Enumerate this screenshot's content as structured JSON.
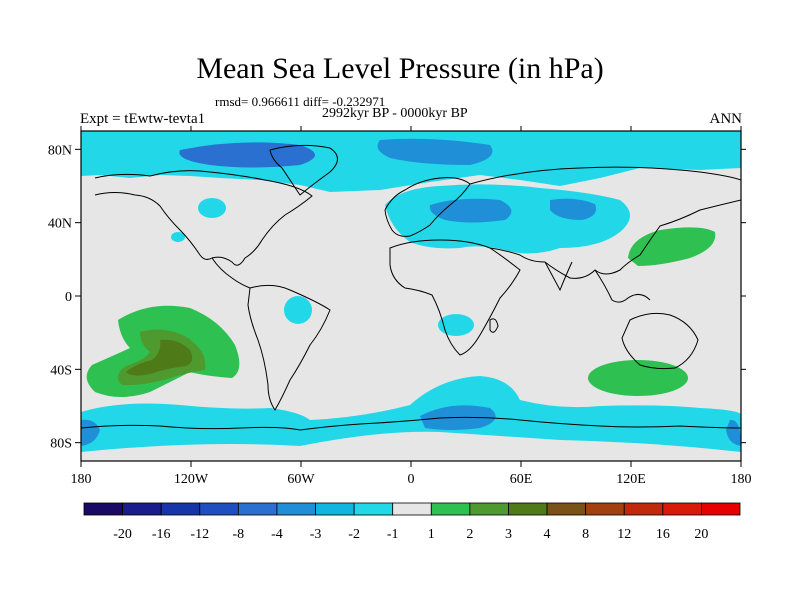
{
  "header": {
    "title": "Mean Sea Level Pressure (in hPa)",
    "stats": "rmsd= 0.966611 diff= -0.232971",
    "period": "2992kyr BP - 0000kyr BP",
    "experiment": "Expt = tEwtw-tevta1",
    "season": "ANN"
  },
  "chart_data": {
    "type": "heatmap",
    "title": "Mean Sea Level Pressure (in hPa)",
    "units": "hPa",
    "x_axis": {
      "range": [
        -180,
        180
      ],
      "ticks": [
        -180,
        -120,
        -60,
        0,
        60,
        120,
        180
      ],
      "tick_labels": [
        "180",
        "120W",
        "60W",
        "0",
        "60E",
        "120E",
        "180"
      ]
    },
    "y_axis": {
      "range": [
        -90,
        90
      ],
      "ticks": [
        80,
        40,
        0,
        -40,
        -80
      ],
      "tick_labels": [
        "80N",
        "40N",
        "0",
        "40S",
        "80S"
      ]
    },
    "colorbar": {
      "levels": [
        "-20",
        "-16",
        "-12",
        "-8",
        "-4",
        "-3",
        "-2",
        "-1",
        "1",
        "2",
        "3",
        "4",
        "8",
        "12",
        "16",
        "20"
      ],
      "colors": [
        "#1a0a66",
        "#1c1d8c",
        "#1535a8",
        "#1d4fc0",
        "#2a70d0",
        "#1f90d8",
        "#10b6e0",
        "#22d8e8",
        "#e6e6e6",
        "#2ec050",
        "#4f9a2e",
        "#4e7a18",
        "#7a5218",
        "#a34010",
        "#c02a0a",
        "#d81a08",
        "#e60000"
      ]
    },
    "regions": [
      {
        "name": "arctic-negative",
        "value_range": [
          -4,
          -1
        ]
      },
      {
        "name": "north-atlantic-eurasia-negative",
        "value_range": [
          -4,
          -1
        ]
      },
      {
        "name": "south-pacific-positive",
        "value_range": [
          1,
          4
        ]
      },
      {
        "name": "south-indian-positive",
        "value_range": [
          1,
          2
        ]
      },
      {
        "name": "north-pacific-positive",
        "value_range": [
          1,
          2
        ]
      },
      {
        "name": "southern-ocean-negative",
        "value_range": [
          -4,
          -1
        ]
      }
    ]
  }
}
